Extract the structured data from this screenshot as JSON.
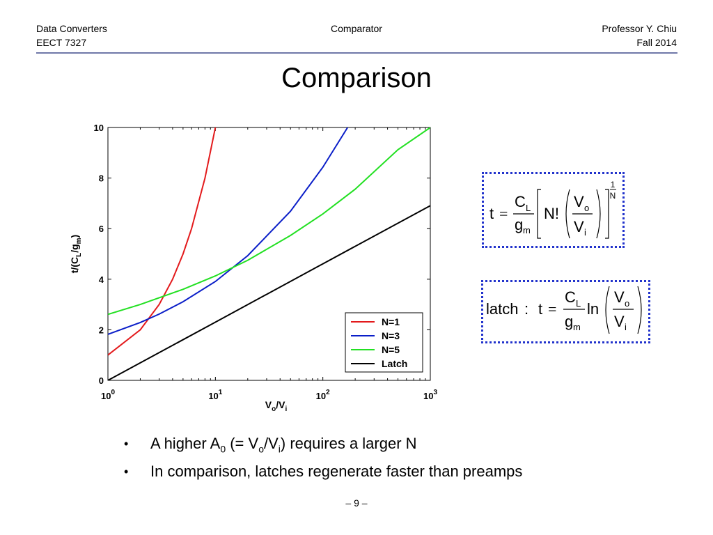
{
  "header": {
    "left_line1": "Data Converters",
    "left_line2": "EECT 7327",
    "center": "Comparator",
    "right_line1": "Professor Y. Chiu",
    "right_line2": "Fall 2014"
  },
  "title": "Comparison",
  "colors": {
    "rule": "#6f78a8",
    "eq_border": "#2233cc"
  },
  "chart_data": {
    "type": "line",
    "xscale": "log",
    "xlim": [
      1,
      1000
    ],
    "ylim": [
      0,
      10
    ],
    "x_ticks": [
      "10^0",
      "10^1",
      "10^2",
      "10^3"
    ],
    "y_ticks": [
      "0",
      "2",
      "4",
      "6",
      "8",
      "10"
    ],
    "xlabel": "Vo/Vi",
    "ylabel": "t/(CL/gm)",
    "legend_position": "bottom-right",
    "grid": false,
    "series": [
      {
        "name": "N=1",
        "color": "#e31a1c",
        "x": [
          1,
          2,
          3,
          4,
          5,
          6,
          8,
          10
        ],
        "y": [
          1.0,
          2.0,
          3.0,
          4.0,
          5.0,
          6.0,
          8.0,
          10.0
        ]
      },
      {
        "name": "N=3",
        "color": "#0a1ec8",
        "x": [
          1,
          2,
          3,
          5,
          10,
          20,
          50,
          100,
          170
        ],
        "y": [
          1.82,
          2.29,
          2.62,
          3.11,
          3.91,
          4.93,
          6.69,
          8.43,
          10.0
        ]
      },
      {
        "name": "N=5",
        "color": "#22e022",
        "x": [
          1,
          2,
          5,
          10,
          20,
          50,
          100,
          200,
          500,
          1000
        ],
        "y": [
          2.61,
          3.0,
          3.6,
          4.13,
          4.75,
          5.73,
          6.58,
          7.56,
          9.12,
          10.0
        ]
      },
      {
        "name": "Latch",
        "color": "#000000",
        "x": [
          1,
          10,
          100,
          1000
        ],
        "y": [
          0.0,
          2.3,
          4.61,
          6.91
        ]
      }
    ]
  },
  "equations": {
    "eq1": {
      "t": "t",
      "eq": "=",
      "cl_c": "C",
      "cl_l": "L",
      "gm_g": "g",
      "gm_m": "m",
      "nfact": "N!",
      "vo_v": "V",
      "vo_o": "o",
      "vi_v": "V",
      "vi_i": "i",
      "exp_num": "1",
      "exp_den": "N"
    },
    "eq2": {
      "latch": "latch",
      "colon": ":",
      "t": "t",
      "eq": "=",
      "cl_c": "C",
      "cl_l": "L",
      "gm_g": "g",
      "gm_m": "m",
      "ln": "ln",
      "vo_v": "V",
      "vo_o": "o",
      "vi_v": "V",
      "vi_i": "i"
    }
  },
  "bullets": {
    "b1": {
      "dot": "•",
      "a": "A higher A",
      "a_sub": "0",
      "b": " (= V",
      "b_sub": "o",
      "c": "/V",
      "c_sub": "i",
      "d": ") requires a larger N"
    },
    "b2": {
      "dot": "•",
      "text": "In comparison, latches regenerate faster than preamps"
    }
  },
  "footer": "– 9 –"
}
